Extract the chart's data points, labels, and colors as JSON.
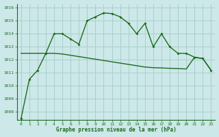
{
  "line1_x": [
    0,
    1,
    2,
    3,
    4,
    5,
    6,
    7,
    8,
    9,
    10,
    11,
    12,
    13,
    14,
    15,
    16,
    17,
    18,
    19,
    20,
    21,
    22,
    23
  ],
  "line1_y": [
    1007.5,
    1010.5,
    1011.2,
    1012.5,
    1014.0,
    1014.0,
    1013.6,
    1013.2,
    1015.0,
    1015.3,
    1015.6,
    1015.55,
    1015.3,
    1014.8,
    1014.0,
    1014.8,
    1013.0,
    1014.0,
    1013.0,
    1012.5,
    1012.5,
    1012.2,
    1012.1,
    1011.2
  ],
  "line2_x": [
    0,
    1,
    2,
    3,
    4,
    5,
    6,
    7,
    8,
    9,
    10,
    11,
    12,
    13,
    14,
    15,
    16,
    17,
    18,
    19,
    20,
    21,
    22,
    23
  ],
  "line2_y": [
    1012.5,
    1012.5,
    1012.5,
    1012.5,
    1012.5,
    1012.45,
    1012.35,
    1012.25,
    1012.15,
    1012.05,
    1011.95,
    1011.85,
    1011.75,
    1011.65,
    1011.55,
    1011.45,
    1011.4,
    1011.38,
    1011.35,
    1011.33,
    1011.3,
    1012.2,
    1012.1,
    1011.2
  ],
  "line_color": "#1a6b1a",
  "bg_color": "#cce8e8",
  "grid_color": "#aacece",
  "xlabel": "Graphe pression niveau de la mer (hPa)",
  "ylim": [
    1007.4,
    1016.3
  ],
  "yticks": [
    1008,
    1009,
    1010,
    1011,
    1012,
    1013,
    1014,
    1015,
    1016
  ],
  "xticks": [
    0,
    1,
    2,
    3,
    4,
    5,
    6,
    7,
    8,
    9,
    10,
    11,
    12,
    13,
    14,
    15,
    16,
    17,
    18,
    19,
    20,
    21,
    22,
    23
  ]
}
